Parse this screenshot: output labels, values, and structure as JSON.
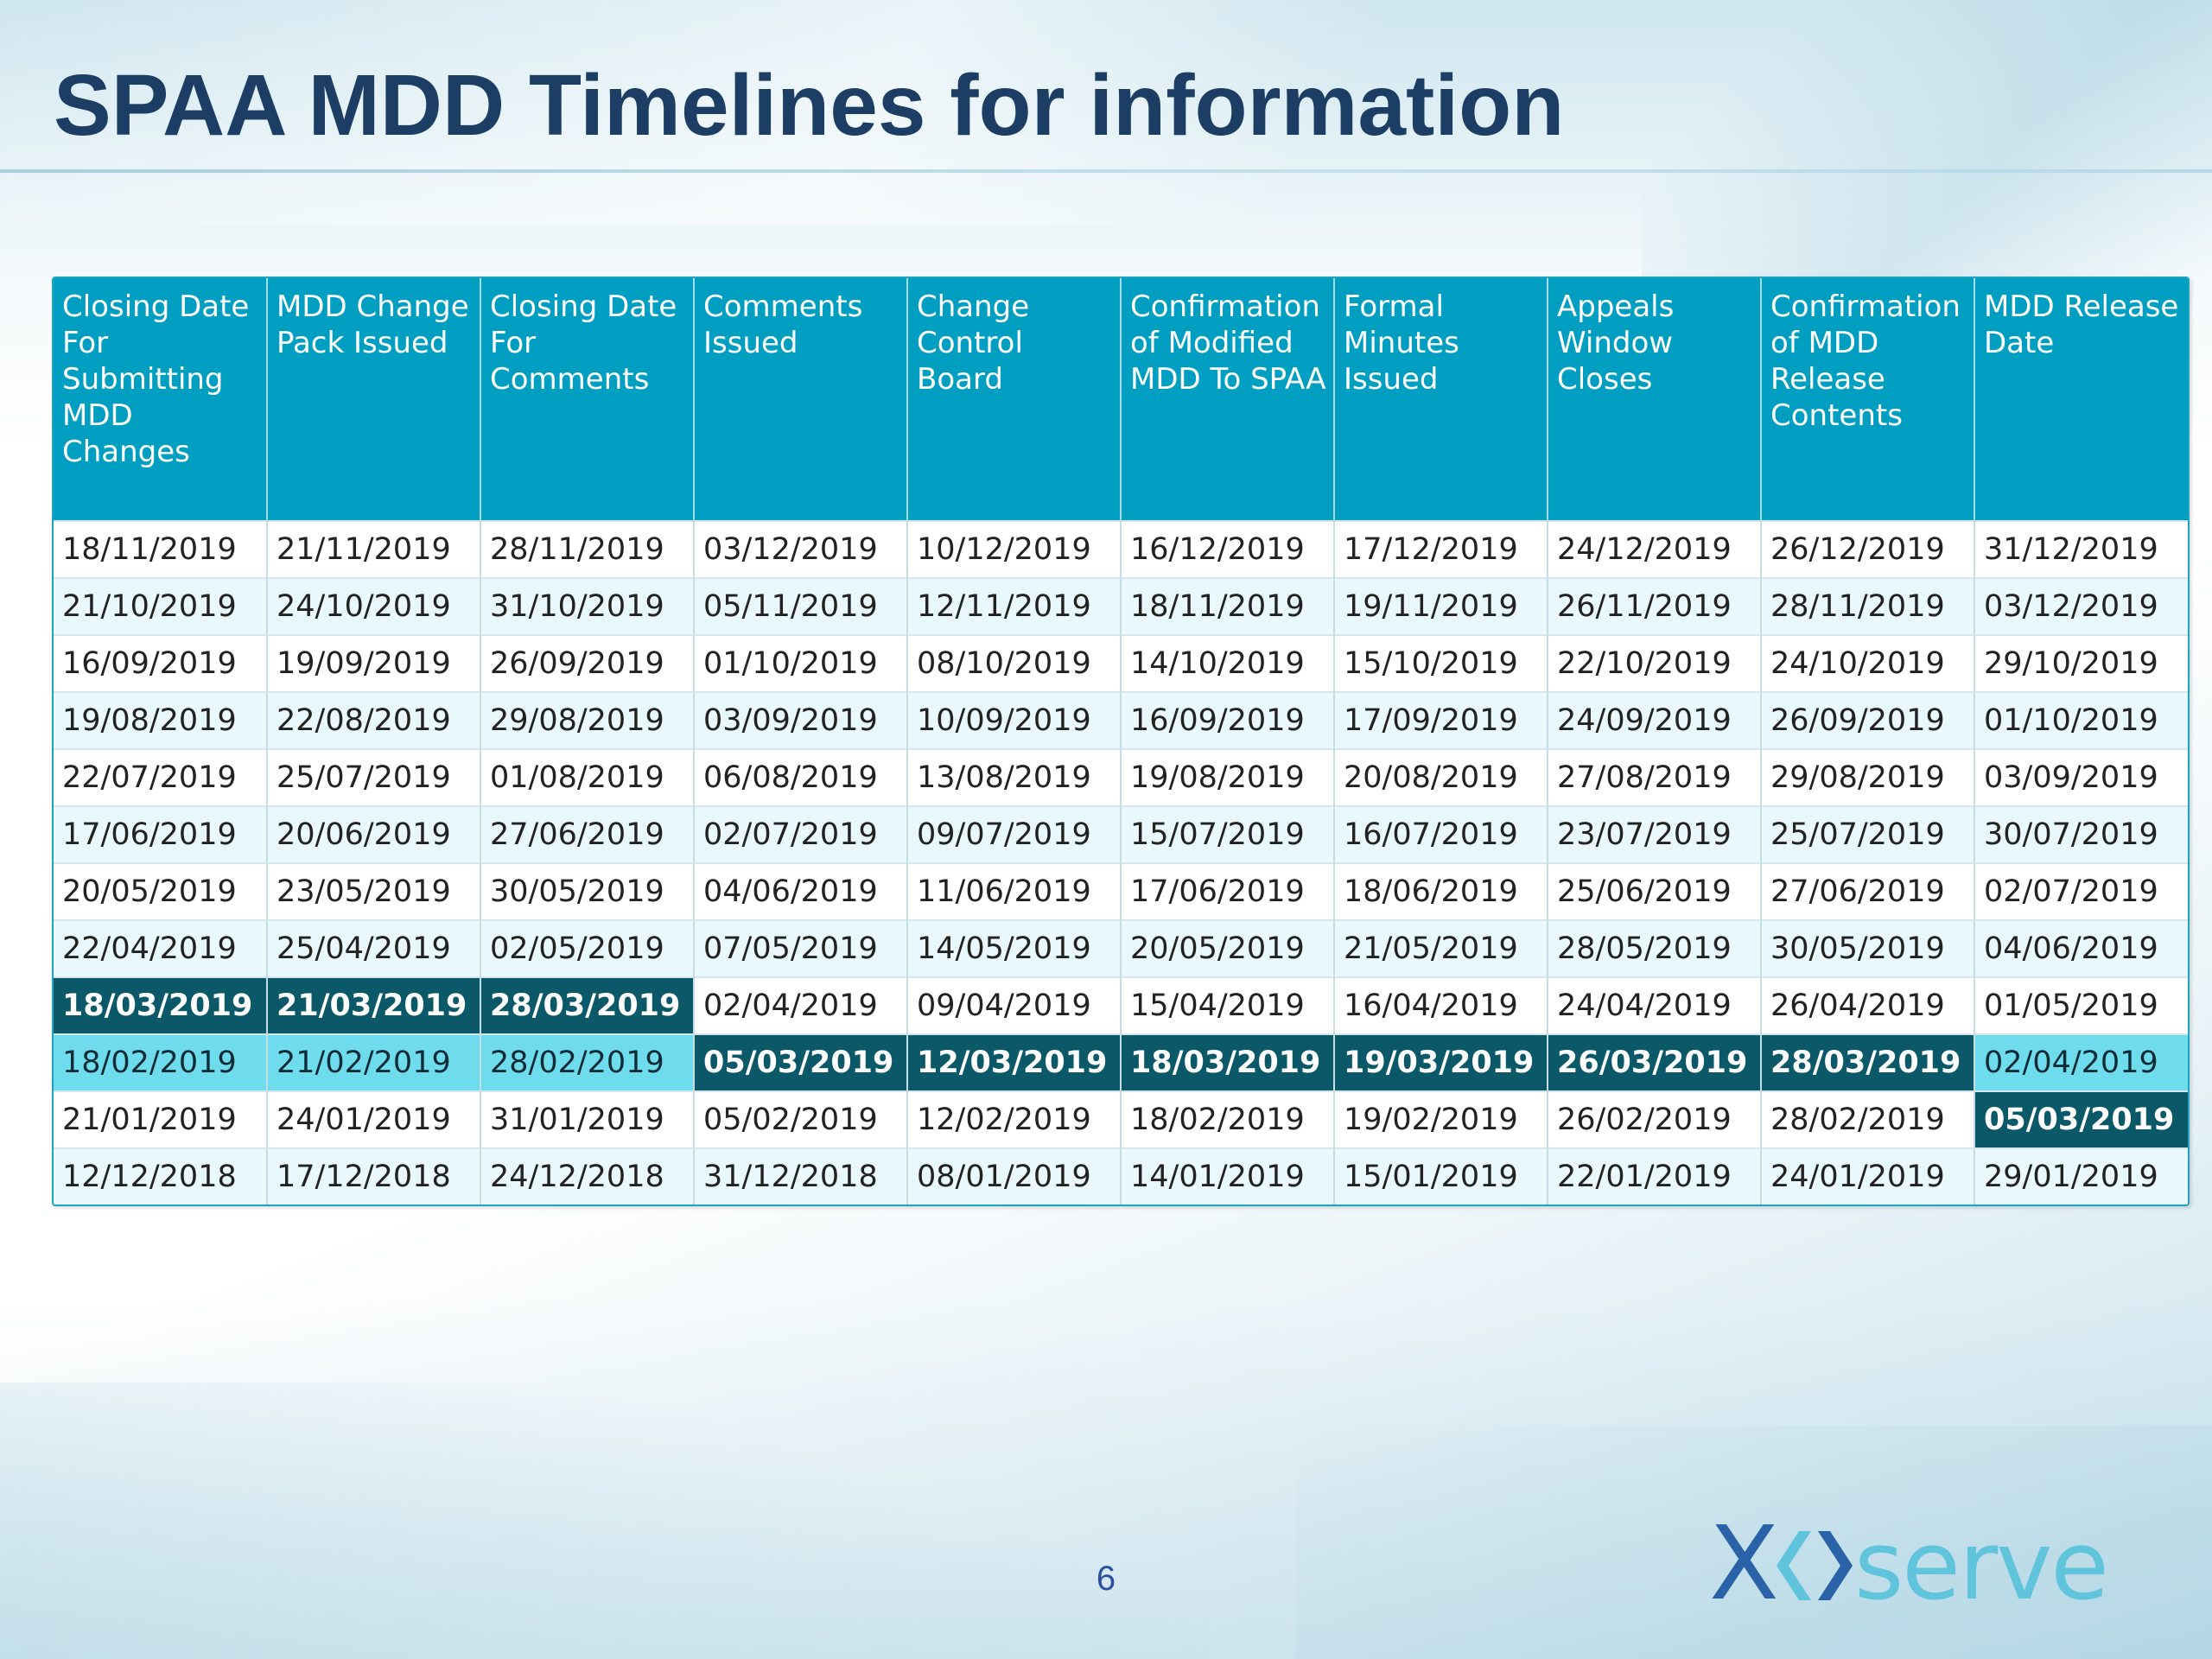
{
  "slide": {
    "title": "SPAA MDD Timelines for information",
    "page_number": "6",
    "logo_text": "xoserve"
  },
  "table": {
    "headers": [
      "Closing Date For Submitting MDD Changes",
      "MDD Change Pack Issued",
      "Closing Date For Comments",
      "Comments Issued",
      "Change Control Board",
      "Confirmation of Modified MDD To SPAA",
      "Formal Minutes Issued",
      "Appeals Window Closes",
      "Confirmation of MDD Release Contents",
      "MDD Release Date"
    ],
    "rows": [
      [
        "18/11/2019",
        "21/11/2019",
        "28/11/2019",
        "03/12/2019",
        "10/12/2019",
        "16/12/2019",
        "17/12/2019",
        "24/12/2019",
        "26/12/2019",
        "31/12/2019"
      ],
      [
        "21/10/2019",
        "24/10/2019",
        "31/10/2019",
        "05/11/2019",
        "12/11/2019",
        "18/11/2019",
        "19/11/2019",
        "26/11/2019",
        "28/11/2019",
        "03/12/2019"
      ],
      [
        "16/09/2019",
        "19/09/2019",
        "26/09/2019",
        "01/10/2019",
        "08/10/2019",
        "14/10/2019",
        "15/10/2019",
        "22/10/2019",
        "24/10/2019",
        "29/10/2019"
      ],
      [
        "19/08/2019",
        "22/08/2019",
        "29/08/2019",
        "03/09/2019",
        "10/09/2019",
        "16/09/2019",
        "17/09/2019",
        "24/09/2019",
        "26/09/2019",
        "01/10/2019"
      ],
      [
        "22/07/2019",
        "25/07/2019",
        "01/08/2019",
        "06/08/2019",
        "13/08/2019",
        "19/08/2019",
        "20/08/2019",
        "27/08/2019",
        "29/08/2019",
        "03/09/2019"
      ],
      [
        "17/06/2019",
        "20/06/2019",
        "27/06/2019",
        "02/07/2019",
        "09/07/2019",
        "15/07/2019",
        "16/07/2019",
        "23/07/2019",
        "25/07/2019",
        "30/07/2019"
      ],
      [
        "20/05/2019",
        "23/05/2019",
        "30/05/2019",
        "04/06/2019",
        "11/06/2019",
        "17/06/2019",
        "18/06/2019",
        "25/06/2019",
        "27/06/2019",
        "02/07/2019"
      ],
      [
        "22/04/2019",
        "25/04/2019",
        "02/05/2019",
        "07/05/2019",
        "14/05/2019",
        "20/05/2019",
        "21/05/2019",
        "28/05/2019",
        "30/05/2019",
        "04/06/2019"
      ],
      [
        "18/03/2019",
        "21/03/2019",
        "28/03/2019",
        "02/04/2019",
        "09/04/2019",
        "15/04/2019",
        "16/04/2019",
        "24/04/2019",
        "26/04/2019",
        "01/05/2019"
      ],
      [
        "18/02/2019",
        "21/02/2019",
        "28/02/2019",
        "05/03/2019",
        "12/03/2019",
        "18/03/2019",
        "19/03/2019",
        "26/03/2019",
        "28/03/2019",
        "02/04/2019"
      ],
      [
        "21/01/2019",
        "24/01/2019",
        "31/01/2019",
        "05/02/2019",
        "12/02/2019",
        "18/02/2019",
        "19/02/2019",
        "26/02/2019",
        "28/02/2019",
        "05/03/2019"
      ],
      [
        "12/12/2018",
        "17/12/2018",
        "24/12/2018",
        "31/12/2018",
        "08/01/2019",
        "14/01/2019",
        "15/01/2019",
        "22/01/2019",
        "24/01/2019",
        "29/01/2019"
      ]
    ],
    "highlights": {
      "dark": [
        [
          8,
          0
        ],
        [
          8,
          1
        ],
        [
          8,
          2
        ],
        [
          9,
          3
        ],
        [
          9,
          4
        ],
        [
          9,
          5
        ],
        [
          9,
          6
        ],
        [
          9,
          7
        ],
        [
          9,
          8
        ],
        [
          10,
          9
        ]
      ],
      "light": [
        [
          9,
          0
        ],
        [
          9,
          1
        ],
        [
          9,
          2
        ],
        [
          9,
          9
        ]
      ]
    }
  },
  "colors": {
    "title": "#1c3d64",
    "header_bg": "#009fc2",
    "highlight_dark": "#0b5968",
    "highlight_light": "#6fdced",
    "row_alt": "#e9f8fc"
  }
}
